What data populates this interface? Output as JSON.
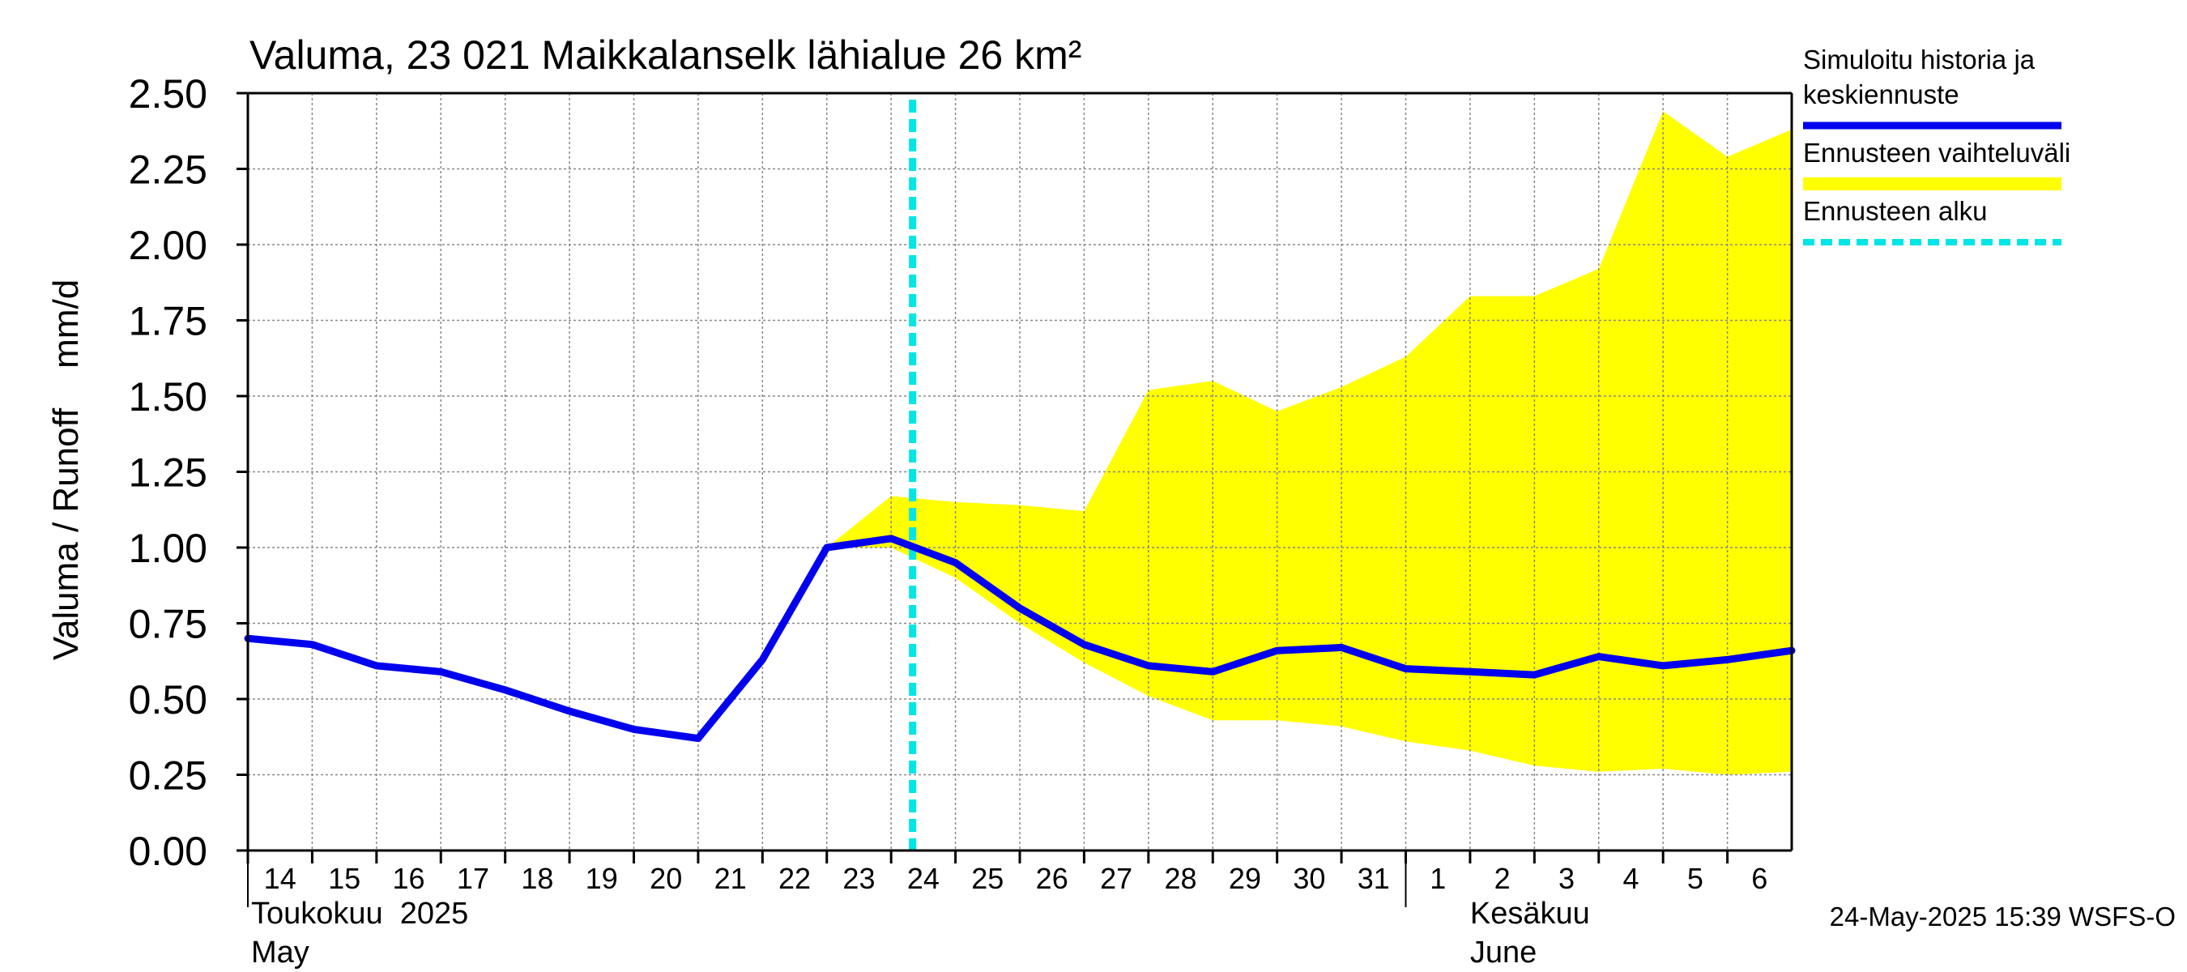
{
  "chart_data": {
    "type": "area",
    "title": "Valuma, 23 021 Maikkalanselk lähialue 26 km²",
    "ylabel": "Valuma / Runoff    mm/d",
    "ylim": [
      0,
      2.5
    ],
    "yticks": [
      "0.00",
      "0.25",
      "0.50",
      "0.75",
      "1.00",
      "1.25",
      "1.50",
      "1.75",
      "2.00",
      "2.25",
      "2.50"
    ],
    "x_tick_labels": [
      "14",
      "15",
      "16",
      "17",
      "18",
      "19",
      "20",
      "21",
      "22",
      "23",
      "24",
      "25",
      "26",
      "27",
      "28",
      "29",
      "30",
      "31",
      "1",
      "2",
      "3",
      "4",
      "5",
      "6"
    ],
    "x_dates": [
      "2025-05-14",
      "2025-05-15",
      "2025-05-16",
      "2025-05-17",
      "2025-05-18",
      "2025-05-19",
      "2025-05-20",
      "2025-05-21",
      "2025-05-22",
      "2025-05-23",
      "2025-05-24",
      "2025-05-25",
      "2025-05-26",
      "2025-05-27",
      "2025-05-28",
      "2025-05-29",
      "2025-05-30",
      "2025-05-31",
      "2025-06-01",
      "2025-06-02",
      "2025-06-03",
      "2025-06-04",
      "2025-06-05",
      "2025-06-06",
      "2025-06-07"
    ],
    "month_labels": [
      {
        "fi": "Toukokuu  2025",
        "en": "May"
      },
      {
        "fi": "Kesäkuu",
        "en": "June"
      }
    ],
    "grid": true,
    "legend_position": "right",
    "series": [
      {
        "name": "Simuloitu historia ja keskiennuste",
        "color": "#0000ee",
        "x": [
          "2025-05-14",
          "2025-05-15",
          "2025-05-16",
          "2025-05-17",
          "2025-05-18",
          "2025-05-19",
          "2025-05-20",
          "2025-05-21",
          "2025-05-22",
          "2025-05-23",
          "2025-05-24",
          "2025-05-25",
          "2025-05-26",
          "2025-05-27",
          "2025-05-28",
          "2025-05-29",
          "2025-05-30",
          "2025-05-31",
          "2025-06-01",
          "2025-06-02",
          "2025-06-03",
          "2025-06-04",
          "2025-06-05",
          "2025-06-06",
          "2025-06-07"
        ],
        "values": [
          0.7,
          0.68,
          0.61,
          0.59,
          0.53,
          0.46,
          0.4,
          0.37,
          0.63,
          1.0,
          1.03,
          0.95,
          0.8,
          0.68,
          0.61,
          0.59,
          0.66,
          0.67,
          0.6,
          0.59,
          0.58,
          0.64,
          0.61,
          0.63,
          0.66
        ]
      },
      {
        "name": "Ennusteen vaihteluväli",
        "color": "#ffff00",
        "x": [
          "2025-05-23",
          "2025-05-24",
          "2025-05-25",
          "2025-05-26",
          "2025-05-27",
          "2025-05-28",
          "2025-05-29",
          "2025-05-30",
          "2025-05-31",
          "2025-06-01",
          "2025-06-02",
          "2025-06-03",
          "2025-06-04",
          "2025-06-05",
          "2025-06-06",
          "2025-06-07"
        ],
        "upper": [
          1.0,
          1.17,
          1.15,
          1.14,
          1.12,
          1.52,
          1.55,
          1.45,
          1.53,
          1.63,
          1.83,
          1.83,
          1.92,
          2.44,
          2.29,
          2.38
        ],
        "lower": [
          1.0,
          1.0,
          0.9,
          0.75,
          0.62,
          0.51,
          0.43,
          0.43,
          0.41,
          0.36,
          0.33,
          0.28,
          0.26,
          0.27,
          0.25,
          0.26
        ]
      },
      {
        "name": "Ennusteen alku",
        "color": "#00e5e5",
        "x_value": "2025-05-24T08:00"
      }
    ],
    "legend": [
      {
        "lines": [
          "Simuloitu historia ja",
          "keskiennuste"
        ],
        "color": "#0000ee",
        "style": "solid"
      },
      {
        "lines": [
          "Ennusteen vaihteluväli"
        ],
        "color": "#ffff00",
        "style": "solid"
      },
      {
        "lines": [
          "Ennusteen alku"
        ],
        "color": "#00e5e5",
        "style": "dashed"
      }
    ]
  },
  "footer": {
    "timestamp": "24-May-2025 15:39 WSFS-O"
  }
}
